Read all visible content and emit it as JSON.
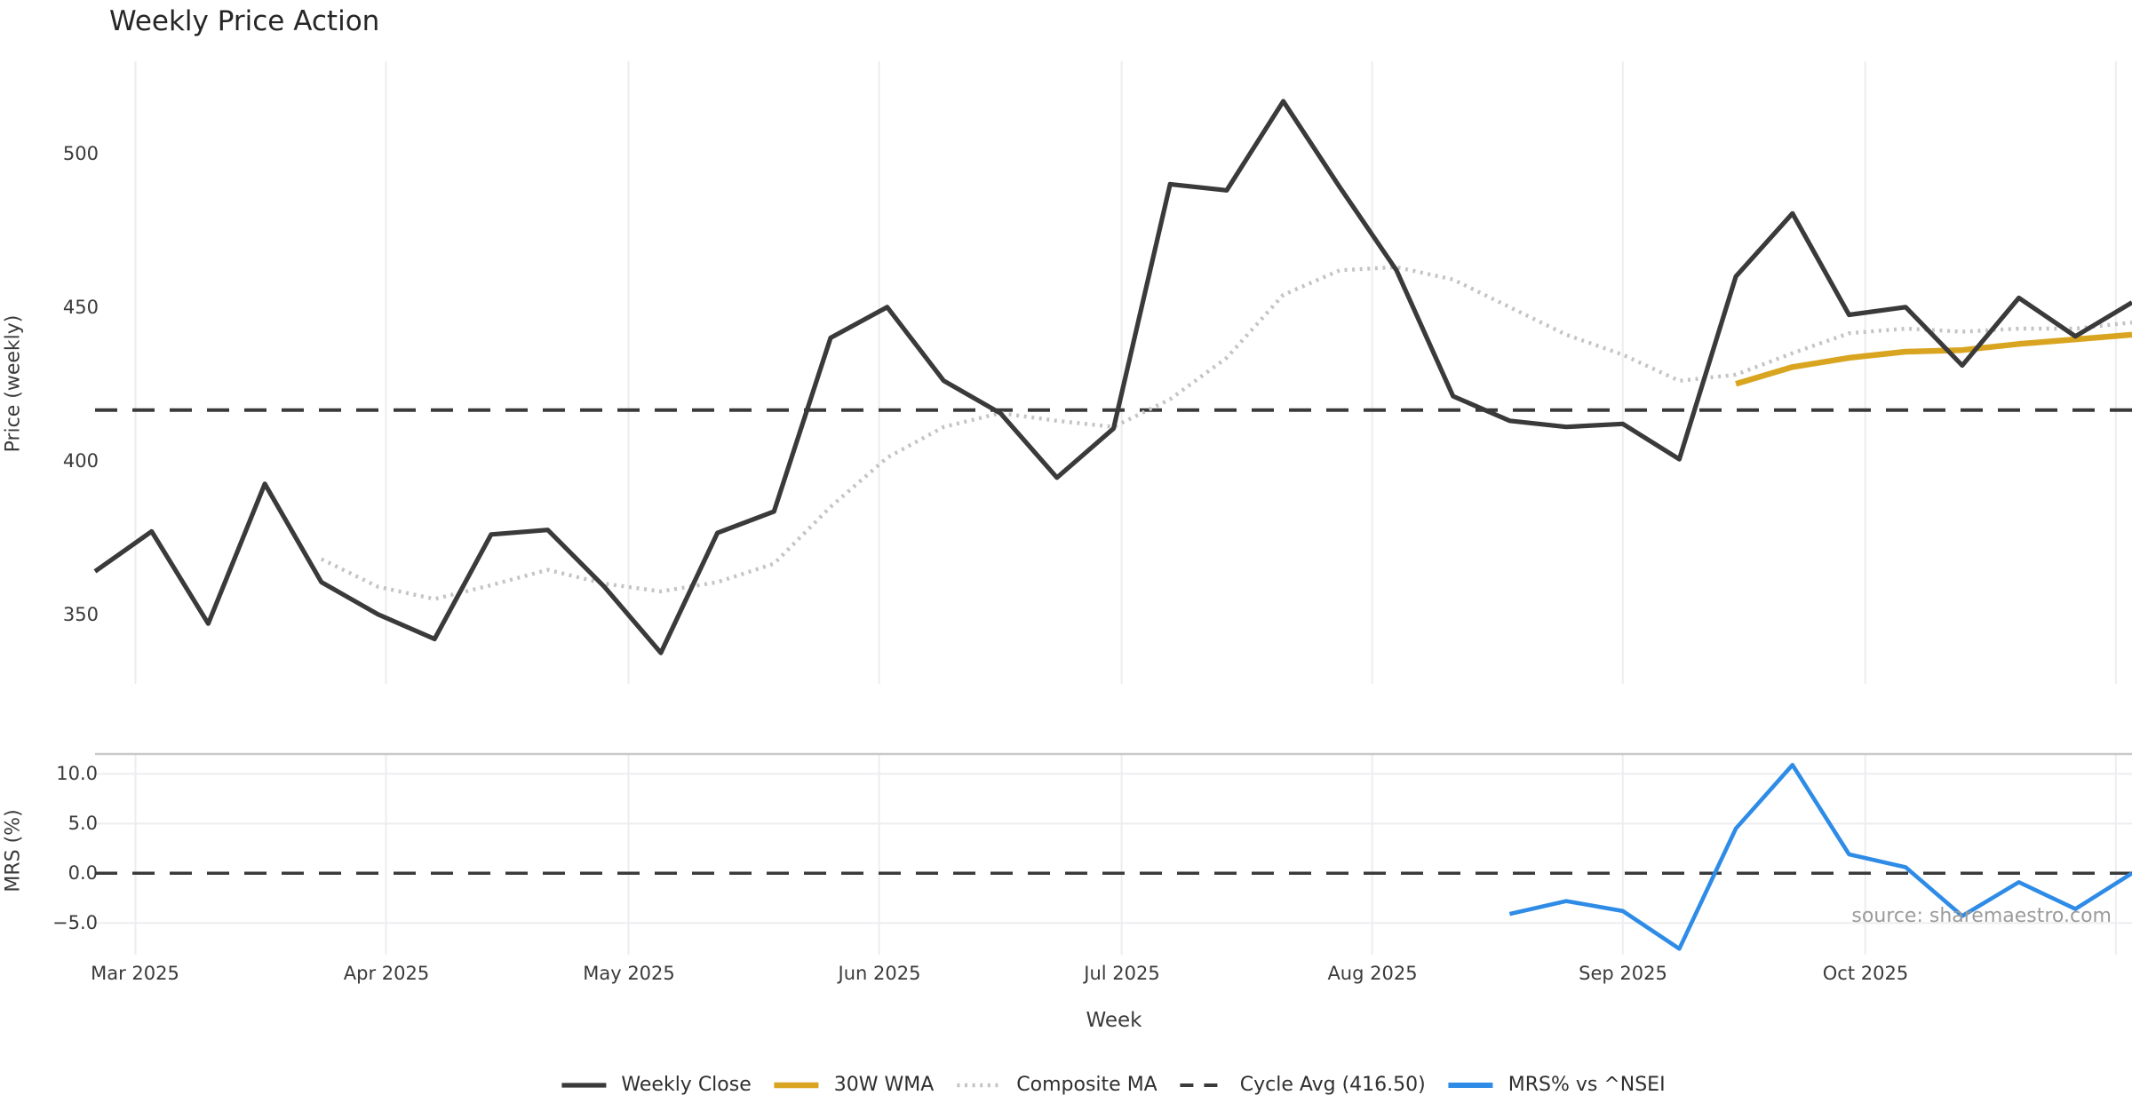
{
  "chart_data": {
    "type": "line",
    "title": "Weekly Price Action",
    "grid": "vertical-monthly",
    "legend_position": "bottom-center",
    "panel_height_ratio": [
      3,
      1
    ],
    "x": {
      "xlabel": "Week",
      "tick_labels": [
        "Mar 2025",
        "Apr 2025",
        "May 2025",
        "Jun 2025",
        "Jul 2025",
        "Aug 2025",
        "Sep 2025",
        "Oct 2025"
      ],
      "tick_dates": [
        "2025-03-01",
        "2025-04-01",
        "2025-05-01",
        "2025-06-01",
        "2025-07-01",
        "2025-08-01",
        "2025-09-01",
        "2025-10-01"
      ],
      "unlabeled_gridline_date": "2025-11-01",
      "weeks": [
        "2025-02-24",
        "2025-03-03",
        "2025-03-10",
        "2025-03-17",
        "2025-03-24",
        "2025-03-31",
        "2025-04-07",
        "2025-04-14",
        "2025-04-21",
        "2025-04-28",
        "2025-05-05",
        "2025-05-12",
        "2025-05-19",
        "2025-05-26",
        "2025-06-02",
        "2025-06-09",
        "2025-06-16",
        "2025-06-23",
        "2025-06-30",
        "2025-07-07",
        "2025-07-14",
        "2025-07-21",
        "2025-07-28",
        "2025-08-04",
        "2025-08-11",
        "2025-08-18",
        "2025-08-25",
        "2025-09-01",
        "2025-09-08",
        "2025-09-15",
        "2025-09-22",
        "2025-09-29",
        "2025-10-06",
        "2025-10-13",
        "2025-10-20",
        "2025-10-27",
        "2025-11-03"
      ]
    },
    "panels": [
      {
        "name": "price",
        "title": "Weekly Price Action",
        "ylabel": "Price (weekly)",
        "ylim": [
          327.4,
          530
        ],
        "yticks": [
          350,
          400,
          450,
          500
        ],
        "ytick_labels": [
          "350",
          "400",
          "450",
          "500"
        ],
        "series": [
          {
            "name": "Weekly Close",
            "style": "solid",
            "color": "#3a3a3a",
            "width": 5.2,
            "values": [
              364,
              377,
              347,
              392.5,
              360.5,
              350,
              342,
              376,
              377.5,
              359,
              337.5,
              376.5,
              383.5,
              440,
              450,
              426,
              415.5,
              394.5,
              410.5,
              490,
              488,
              517,
              489,
              462,
              421,
              413,
              411,
              412,
              400.5,
              460,
              480.5,
              447.5,
              450,
              431,
              453,
              440.5,
              451.5
            ]
          },
          {
            "name": "30W WMA",
            "style": "solid",
            "color": "#d9a521",
            "width": 6.5,
            "values": [
              null,
              null,
              null,
              null,
              null,
              null,
              null,
              null,
              null,
              null,
              null,
              null,
              null,
              null,
              null,
              null,
              null,
              null,
              null,
              null,
              null,
              null,
              null,
              null,
              null,
              null,
              null,
              null,
              null,
              425,
              430.5,
              433.5,
              435.5,
              436,
              438,
              439.5,
              441
            ]
          },
          {
            "name": "Composite MA",
            "style": "dotted",
            "color": "#c4c4c4",
            "width": 4.4,
            "values": [
              null,
              null,
              null,
              null,
              368,
              359,
              355,
              359.5,
              364.5,
              360,
              357.5,
              360.5,
              366.5,
              385,
              401,
              411,
              415.5,
              413,
              411,
              420,
              433.5,
              454,
              462,
              463,
              459,
              450,
              441,
              434.5,
              426,
              428,
              435,
              441.5,
              443,
              442,
              443,
              443,
              445
            ]
          },
          {
            "name": "Cycle Avg (416.50)",
            "style": "dashed",
            "color": "#3a3a3a",
            "width": 4,
            "constant": 416.5
          }
        ]
      },
      {
        "name": "mrs",
        "ylabel": "MRS (%)",
        "ylim": [
          -8.2,
          12
        ],
        "yticks": [
          -5,
          0,
          5,
          10
        ],
        "ytick_labels": [
          "−5.0",
          "0.0",
          "5.0",
          "10.0"
        ],
        "zero_dashed_line": 0.0,
        "series": [
          {
            "name": "MRS% vs ^NSEI",
            "style": "solid",
            "color": "#2e8ce6",
            "width": 4.6,
            "values": [
              null,
              null,
              null,
              null,
              null,
              null,
              null,
              null,
              null,
              null,
              null,
              null,
              null,
              null,
              null,
              null,
              null,
              null,
              null,
              null,
              null,
              null,
              null,
              null,
              null,
              -4.1,
              -2.8,
              -3.8,
              -7.6,
              4.5,
              10.9,
              1.9,
              0.6,
              -4.3,
              -0.9,
              -3.6,
              0.0
            ]
          }
        ]
      }
    ],
    "legend": {
      "items": [
        {
          "label": "Weekly Close",
          "color": "#3a3a3a",
          "style": "solid",
          "width": 5.2
        },
        {
          "label": "30W WMA",
          "color": "#d9a521",
          "style": "solid",
          "width": 6.5
        },
        {
          "label": "Composite MA",
          "color": "#c4c4c4",
          "style": "dotted",
          "width": 4.4
        },
        {
          "label": "Cycle Avg (416.50)",
          "color": "#3a3a3a",
          "style": "dashed",
          "width": 4
        },
        {
          "label": "MRS% vs ^NSEI",
          "color": "#2e8ce6",
          "style": "solid",
          "width": 6
        }
      ]
    },
    "annotations": {
      "source_note": "source: sharemaestro.com"
    },
    "colors": {
      "background": "#ffffff",
      "gridline": "#ededf1",
      "mrs_top_spine": "#c9c9c9",
      "text": "#3a3a3a",
      "title_text": "#262626",
      "source_text": "#9b9b9b"
    }
  }
}
